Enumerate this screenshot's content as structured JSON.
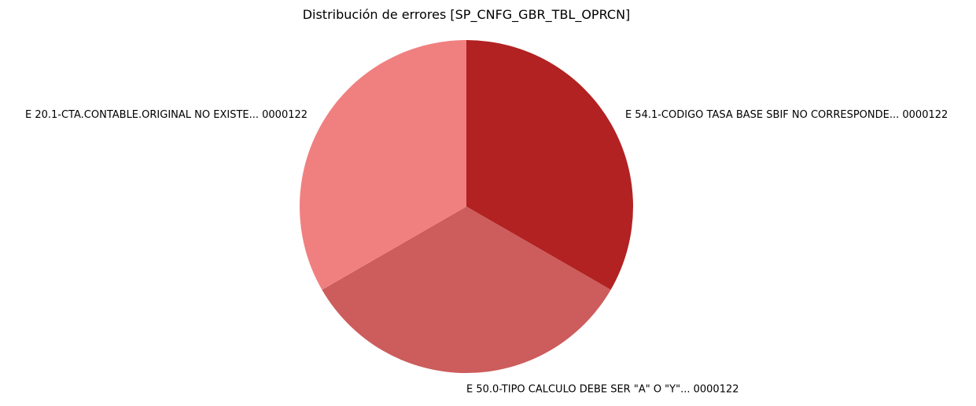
{
  "chart_data": {
    "type": "pie",
    "title": "Distribución de errores [SP_CNFG_GBR_TBL_OPRCN]",
    "slices": [
      {
        "label": "E 54.1-CODIGO TASA BASE SBIF NO CORRESPONDE... 0000122",
        "value": 1,
        "color": "#b22222"
      },
      {
        "label": "E 50.0-TIPO CALCULO DEBE SER \"A\" O \"Y\"... 0000122",
        "value": 1,
        "color": "#cd5c5c"
      },
      {
        "label": "E 20.1-CTA.CONTABLE.ORIGINAL NO EXISTE... 0000122",
        "value": 1,
        "color": "#f08080"
      }
    ],
    "start_angle": "12 o'clock",
    "direction": "clockwise",
    "legend": "none"
  }
}
